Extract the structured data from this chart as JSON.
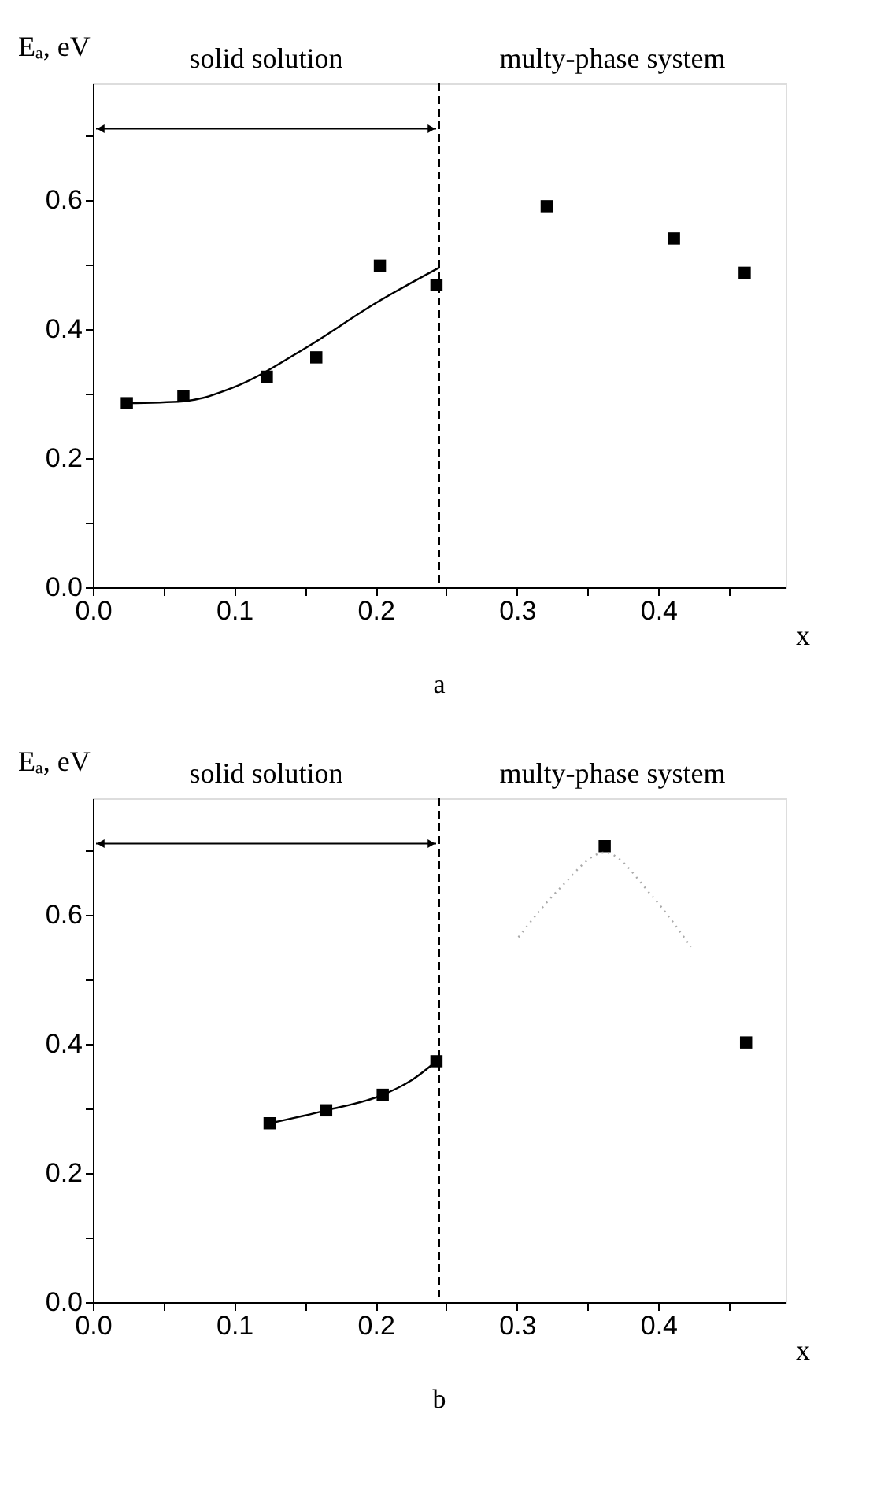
{
  "chart_data": [
    {
      "type": "scatter",
      "xlabel": "x",
      "ylabel": "Eₐ, eV",
      "annotations": [
        "solid solution",
        "multy-phase system",
        "a"
      ],
      "series": [
        {
          "type": "scatter",
          "marker": "square",
          "color": "#000000",
          "x": [
            0.024,
            0.064,
            0.123,
            0.158,
            0.203,
            0.243,
            0.321,
            0.411,
            0.461
          ],
          "values": [
            0.285,
            0.296,
            0.326,
            0.356,
            0.498,
            0.468,
            0.59,
            0.54,
            0.487
          ]
        },
        {
          "type": "line",
          "line_style": "solid",
          "color": "#000000",
          "x": [
            0.024,
            0.064,
            0.1,
            0.15,
            0.2,
            0.245
          ],
          "values": [
            0.285,
            0.288,
            0.31,
            0.37,
            0.44,
            0.495
          ]
        }
      ],
      "ref_lines": [
        {
          "axis": "x",
          "value": 0.245,
          "line_style": "dashed",
          "color": "#000000"
        }
      ],
      "xlim": [
        0,
        0.49
      ],
      "ylim": [
        0,
        0.78
      ],
      "xticks": [
        {
          "value": 0,
          "label": "0.0"
        },
        {
          "value": 0.05,
          "label": null
        },
        {
          "value": 0.1,
          "label": "0.1"
        },
        {
          "value": 0.15,
          "label": null
        },
        {
          "value": 0.2,
          "label": "0.2"
        },
        {
          "value": 0.25,
          "label": null
        },
        {
          "value": 0.3,
          "label": "0.3"
        },
        {
          "value": 0.35,
          "label": null
        },
        {
          "value": 0.4,
          "label": "0.4"
        },
        {
          "value": 0.45,
          "label": null
        }
      ],
      "yticks": [
        {
          "value": 0,
          "label": "0.0"
        },
        {
          "value": 0.1,
          "label": null
        },
        {
          "value": 0.2,
          "label": "0.2"
        },
        {
          "value": 0.3,
          "label": null
        },
        {
          "value": 0.4,
          "label": "0.4"
        },
        {
          "value": 0.5,
          "label": null
        },
        {
          "value": 0.6,
          "label": "0.6"
        },
        {
          "value": 0.7,
          "label": null
        }
      ],
      "grid": false
    },
    {
      "type": "scatter",
      "xlabel": "x",
      "ylabel": "Eₐ, eV",
      "annotations": [
        "solid solution",
        "multy-phase system",
        "b"
      ],
      "series": [
        {
          "type": "scatter",
          "marker": "square",
          "color": "#000000",
          "x": [
            0.125,
            0.165,
            0.205,
            0.243,
            0.362,
            0.462
          ],
          "values": [
            0.277,
            0.297,
            0.321,
            0.373,
            0.706,
            0.402
          ]
        },
        {
          "type": "line",
          "line_style": "solid",
          "color": "#000000",
          "x": [
            0.125,
            0.165,
            0.205,
            0.225,
            0.243
          ],
          "values": [
            0.277,
            0.297,
            0.321,
            0.343,
            0.373
          ]
        },
        {
          "type": "line",
          "line_style": "dotted",
          "color": "#aaaaaa",
          "x": [
            0.301,
            0.33,
            0.362,
            0.395,
            0.423
          ],
          "values": [
            0.565,
            0.64,
            0.696,
            0.63,
            0.55
          ]
        }
      ],
      "ref_lines": [
        {
          "axis": "x",
          "value": 0.245,
          "line_style": "dashed",
          "color": "#000000"
        }
      ],
      "xlim": [
        0,
        0.49
      ],
      "ylim": [
        0,
        0.78
      ],
      "xticks": [
        {
          "value": 0,
          "label": "0.0"
        },
        {
          "value": 0.05,
          "label": null
        },
        {
          "value": 0.1,
          "label": "0.1"
        },
        {
          "value": 0.15,
          "label": null
        },
        {
          "value": 0.2,
          "label": "0.2"
        },
        {
          "value": 0.25,
          "label": null
        },
        {
          "value": 0.3,
          "label": "0.3"
        },
        {
          "value": 0.35,
          "label": null
        },
        {
          "value": 0.4,
          "label": "0.4"
        },
        {
          "value": 0.45,
          "label": null
        }
      ],
      "yticks": [
        {
          "value": 0,
          "label": "0.0"
        },
        {
          "value": 0.1,
          "label": null
        },
        {
          "value": 0.2,
          "label": "0.2"
        },
        {
          "value": 0.3,
          "label": null
        },
        {
          "value": 0.4,
          "label": "0.4"
        },
        {
          "value": 0.5,
          "label": null
        },
        {
          "value": 0.6,
          "label": "0.6"
        },
        {
          "value": 0.7,
          "label": null
        }
      ],
      "grid": false
    }
  ]
}
